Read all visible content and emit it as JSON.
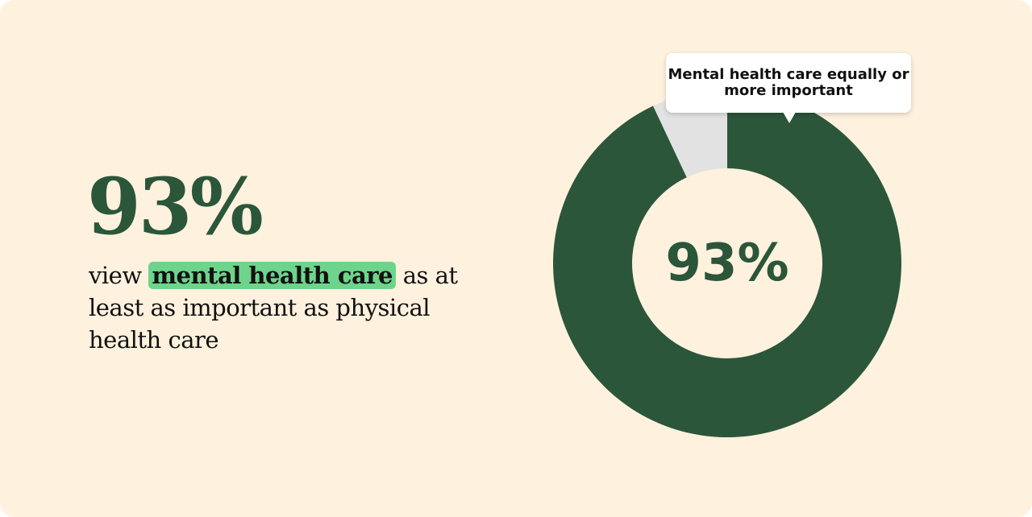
{
  "headline": "93%",
  "description": {
    "before": "view ",
    "highlight": "mental health care",
    "after": " as at least as important as physical health care"
  },
  "colors": {
    "background": "#fef1de",
    "primary": "#2b5639",
    "remainder": "#e2e2e2",
    "highlight": "#6ed48c"
  },
  "chart_data": {
    "type": "pie",
    "variant": "donut",
    "slices": [
      {
        "name": "Mental health care equally or more important",
        "value": 93,
        "color": "#2b5639"
      },
      {
        "value": 7,
        "color": "#e2e2e2"
      }
    ],
    "center_label": "93%",
    "tooltip": "Mental health care equally or more important"
  }
}
